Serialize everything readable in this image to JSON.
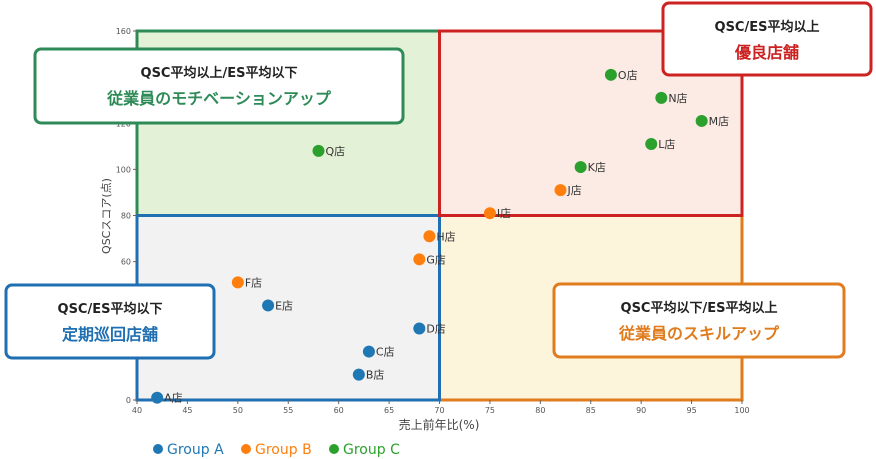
{
  "chart_data": {
    "type": "scatter",
    "xlabel": "売上前年比(%)",
    "ylabel": "QSCスコア(点)",
    "xlim": [
      40,
      100
    ],
    "ylim": [
      0,
      160
    ],
    "x_ticks": [
      "40",
      "45",
      "50",
      "55",
      "60",
      "65",
      "70",
      "75",
      "80",
      "85",
      "90",
      "95",
      "100"
    ],
    "y_ticks": [
      "0",
      "60",
      "80",
      "100",
      "120",
      "160"
    ],
    "thresholds": {
      "x": 70,
      "y": 80
    },
    "quadrants": [
      {
        "id": "top-left",
        "title": "QSC平均以上/ES平均以下",
        "subtitle": "従業員のモチベーションアップ",
        "color": "#2e8b57",
        "fill": "#e3f1d6"
      },
      {
        "id": "top-right",
        "title": "QSC/ES平均以上",
        "subtitle": "優良店舗",
        "color": "#cc2222",
        "fill": "#fbebe4"
      },
      {
        "id": "bottom-left",
        "title": "QSC/ES平均以下",
        "subtitle": "定期巡回店舗",
        "color": "#1f6fb2",
        "fill": "#f2f2f2"
      },
      {
        "id": "bottom-right",
        "title": "QSC平均以下/ES平均以上",
        "subtitle": "従業員のスキルアップ",
        "color": "#e07b1e",
        "fill": "#fdf4dc"
      }
    ],
    "series": [
      {
        "name": "Group A",
        "color": "#1f77b4",
        "points": [
          {
            "label": "A店",
            "x": 42,
            "y": 1
          },
          {
            "label": "B店",
            "x": 62,
            "y": 11
          },
          {
            "label": "C店",
            "x": 63,
            "y": 21
          },
          {
            "label": "D店",
            "x": 68,
            "y": 31
          },
          {
            "label": "E店",
            "x": 53,
            "y": 41
          }
        ]
      },
      {
        "name": "Group B",
        "color": "#ff7f0e",
        "points": [
          {
            "label": "F店",
            "x": 50,
            "y": 51
          },
          {
            "label": "G店",
            "x": 68,
            "y": 61
          },
          {
            "label": "H店",
            "x": 69,
            "y": 71
          },
          {
            "label": "I店",
            "x": 75,
            "y": 81
          },
          {
            "label": "J店",
            "x": 82,
            "y": 91
          }
        ]
      },
      {
        "name": "Group C",
        "color": "#2ca02c",
        "points": [
          {
            "label": "K店",
            "x": 84,
            "y": 101
          },
          {
            "label": "L店",
            "x": 91,
            "y": 111
          },
          {
            "label": "M店",
            "x": 96,
            "y": 121
          },
          {
            "label": "N店",
            "x": 92,
            "y": 131
          },
          {
            "label": "O店",
            "x": 87,
            "y": 141
          },
          {
            "label": "Q店",
            "x": 58,
            "y": 108
          }
        ]
      }
    ],
    "legend_position": "bottom-left"
  }
}
